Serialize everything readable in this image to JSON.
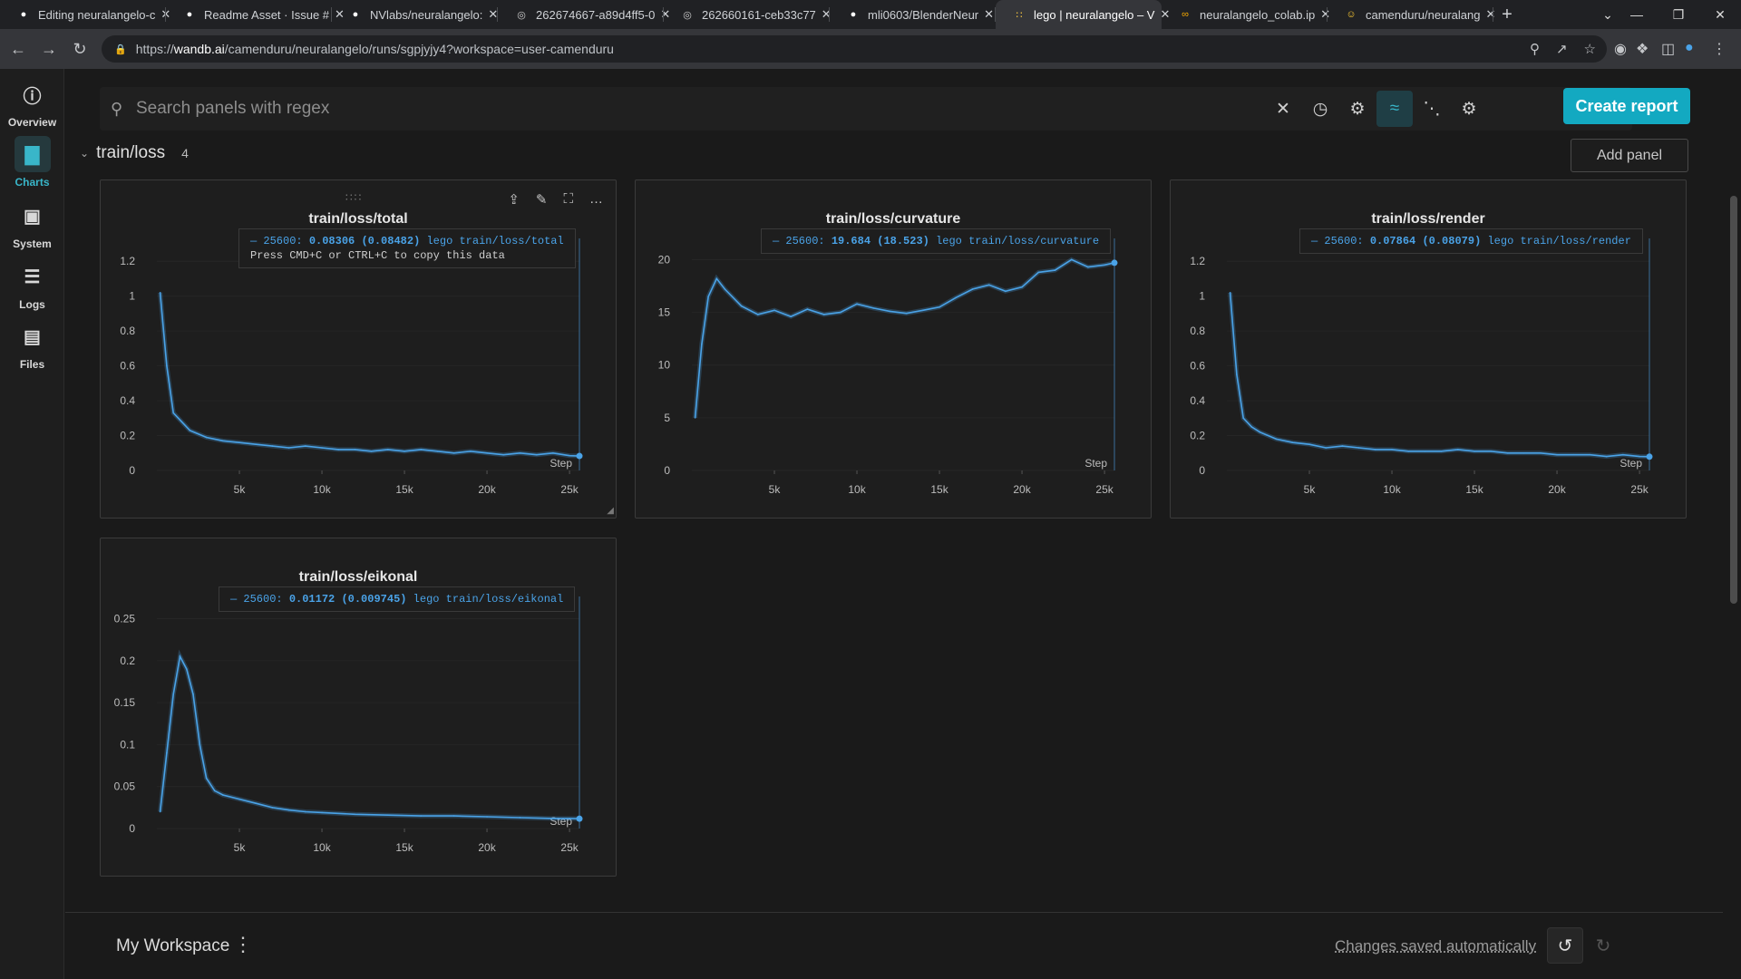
{
  "browser": {
    "tabs": [
      {
        "title": "Editing neuralangelo-c",
        "icon": "github-icon"
      },
      {
        "title": "Readme Asset · Issue #",
        "icon": "github-icon"
      },
      {
        "title": "NVlabs/neuralangelo:",
        "icon": "github-icon"
      },
      {
        "title": "262674667-a89d4ff5-0",
        "icon": "globe-icon"
      },
      {
        "title": "262660161-ceb33c77",
        "icon": "globe-icon"
      },
      {
        "title": "mli0603/BlenderNeur",
        "icon": "github-icon"
      },
      {
        "title": "lego | neuralangelo – V",
        "icon": "wandb-icon",
        "active": true
      },
      {
        "title": "neuralangelo_colab.ip",
        "icon": "colab-icon"
      },
      {
        "title": "camenduru/neuralang",
        "icon": "huggingface-icon"
      }
    ],
    "url_prefix": "https://",
    "url_host": "wandb.ai",
    "url_path": "/camenduru/neuralangelo/runs/sgpjyjy4?workspace=user-camenduru"
  },
  "sidebar": {
    "items": [
      {
        "label": "Overview",
        "icon": "info-icon"
      },
      {
        "label": "Charts",
        "icon": "chart-icon",
        "active": true
      },
      {
        "label": "System",
        "icon": "chip-icon"
      },
      {
        "label": "Logs",
        "icon": "list-icon"
      },
      {
        "label": "Files",
        "icon": "file-icon"
      }
    ]
  },
  "toolbar": {
    "search_placeholder": "Search panels with regex",
    "create_report_label": "Create report"
  },
  "section": {
    "title": "train/loss",
    "count": "4",
    "add_panel_label": "Add panel"
  },
  "colors": {
    "accent": "#13a9c1",
    "series": "#4aa3e8"
  },
  "panels": [
    {
      "title": "train/loss/total",
      "legend_step": "25600:",
      "legend_value": "0.08306",
      "legend_smoothed": "(0.08482)",
      "legend_run": "lego train/loss/total",
      "legend_hint": "Press CMD+C or CTRL+C to copy this data",
      "xlabel": "Step"
    },
    {
      "title": "train/loss/curvature",
      "legend_step": "25600:",
      "legend_value": "19.684",
      "legend_smoothed": "(18.523)",
      "legend_run": "lego train/loss/curvature",
      "xlabel": "Step"
    },
    {
      "title": "train/loss/render",
      "legend_step": "25600:",
      "legend_value": "0.07864",
      "legend_smoothed": "(0.08079)",
      "legend_run": "lego train/loss/render",
      "xlabel": "Step"
    },
    {
      "title": "train/loss/eikonal",
      "legend_step": "25600:",
      "legend_value": "0.01172",
      "legend_smoothed": "(0.009745)",
      "legend_run": "lego train/loss/eikonal",
      "xlabel": "Step"
    }
  ],
  "chart_data": [
    {
      "type": "line",
      "title": "train/loss/total",
      "xlabel": "Step",
      "xlim": [
        0,
        25600
      ],
      "ylim": [
        0,
        1.3
      ],
      "xticks": [
        "5k",
        "10k",
        "15k",
        "20k",
        "25k"
      ],
      "yticks": [
        "0",
        "0.2",
        "0.4",
        "0.6",
        "0.8",
        "1",
        "1.2"
      ],
      "series": [
        {
          "name": "lego train/loss/total",
          "x": [
            200,
            600,
            1000,
            1500,
            2000,
            3000,
            4000,
            5000,
            6000,
            7000,
            8000,
            9000,
            10000,
            11000,
            12000,
            13000,
            14000,
            15000,
            16000,
            17000,
            18000,
            19000,
            20000,
            21000,
            22000,
            23000,
            24000,
            25000,
            25600
          ],
          "y": [
            1.02,
            0.6,
            0.33,
            0.28,
            0.23,
            0.19,
            0.17,
            0.16,
            0.15,
            0.14,
            0.13,
            0.14,
            0.13,
            0.12,
            0.12,
            0.11,
            0.12,
            0.11,
            0.12,
            0.11,
            0.1,
            0.11,
            0.1,
            0.09,
            0.1,
            0.09,
            0.1,
            0.085,
            0.083
          ]
        }
      ]
    },
    {
      "type": "line",
      "title": "train/loss/curvature",
      "xlabel": "Step",
      "xlim": [
        0,
        25600
      ],
      "ylim": [
        0,
        21.5
      ],
      "xticks": [
        "5k",
        "10k",
        "15k",
        "20k",
        "25k"
      ],
      "yticks": [
        "0",
        "5",
        "10",
        "15",
        "20"
      ],
      "series": [
        {
          "name": "lego train/loss/curvature",
          "x": [
            200,
            600,
            1000,
            1500,
            2000,
            3000,
            4000,
            5000,
            6000,
            7000,
            8000,
            9000,
            10000,
            11000,
            12000,
            13000,
            14000,
            15000,
            16000,
            17000,
            18000,
            19000,
            20000,
            21000,
            22000,
            23000,
            24000,
            25000,
            25600
          ],
          "y": [
            5,
            12,
            16.5,
            18.2,
            17.2,
            15.6,
            14.8,
            15.2,
            14.6,
            15.3,
            14.8,
            15.0,
            15.8,
            15.4,
            15.1,
            14.9,
            15.2,
            15.5,
            16.4,
            17.2,
            17.6,
            17.0,
            17.4,
            18.8,
            19.0,
            20.0,
            19.3,
            19.5,
            19.7
          ]
        }
      ]
    },
    {
      "type": "line",
      "title": "train/loss/render",
      "xlabel": "Step",
      "xlim": [
        0,
        25600
      ],
      "ylim": [
        0,
        1.3
      ],
      "xticks": [
        "5k",
        "10k",
        "15k",
        "20k",
        "25k"
      ],
      "yticks": [
        "0",
        "0.2",
        "0.4",
        "0.6",
        "0.8",
        "1",
        "1.2"
      ],
      "series": [
        {
          "name": "lego train/loss/render",
          "x": [
            200,
            600,
            1000,
            1500,
            2000,
            3000,
            4000,
            5000,
            6000,
            7000,
            8000,
            9000,
            10000,
            11000,
            12000,
            13000,
            14000,
            15000,
            16000,
            17000,
            18000,
            19000,
            20000,
            21000,
            22000,
            23000,
            24000,
            25000,
            25600
          ],
          "y": [
            1.02,
            0.55,
            0.3,
            0.25,
            0.22,
            0.18,
            0.16,
            0.15,
            0.13,
            0.14,
            0.13,
            0.12,
            0.12,
            0.11,
            0.11,
            0.11,
            0.12,
            0.11,
            0.11,
            0.1,
            0.1,
            0.1,
            0.09,
            0.09,
            0.09,
            0.08,
            0.09,
            0.08,
            0.079
          ]
        }
      ]
    },
    {
      "type": "line",
      "title": "train/loss/eikonal",
      "xlabel": "Step",
      "xlim": [
        0,
        25600
      ],
      "ylim": [
        0,
        0.27
      ],
      "xticks": [
        "5k",
        "10k",
        "15k",
        "20k",
        "25k"
      ],
      "yticks": [
        "0",
        "0.05",
        "0.1",
        "0.15",
        "0.2",
        "0.25"
      ],
      "series": [
        {
          "name": "lego train/loss/eikonal",
          "x": [
            200,
            600,
            1000,
            1400,
            1800,
            2200,
            2600,
            3000,
            3500,
            4000,
            5000,
            6000,
            7000,
            8000,
            9000,
            10000,
            12000,
            14000,
            16000,
            18000,
            20000,
            22000,
            24000,
            25000,
            25600
          ],
          "y": [
            0.02,
            0.09,
            0.16,
            0.205,
            0.19,
            0.16,
            0.1,
            0.06,
            0.045,
            0.04,
            0.035,
            0.03,
            0.025,
            0.022,
            0.02,
            0.019,
            0.017,
            0.016,
            0.015,
            0.015,
            0.014,
            0.013,
            0.012,
            0.012,
            0.0117
          ]
        }
      ]
    }
  ],
  "footer": {
    "workspace_name": "My Workspace",
    "saved_status": "Changes saved automatically"
  }
}
